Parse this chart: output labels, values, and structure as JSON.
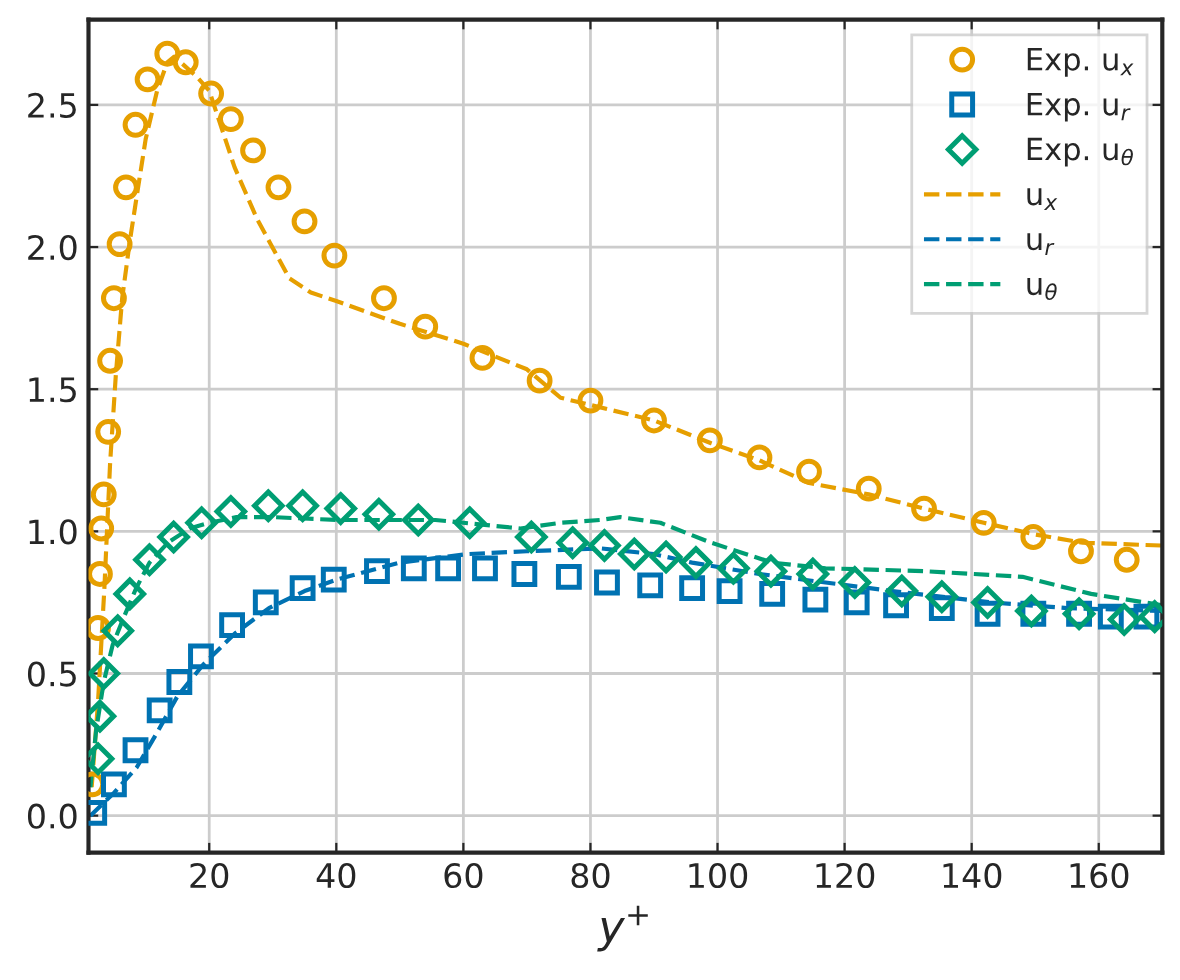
{
  "chart_data": {
    "type": "scatter",
    "xlabel": "y$^{+}$",
    "xlim": [
      1,
      170
    ],
    "ylim": [
      -0.13,
      2.8
    ],
    "xticks": [
      20,
      40,
      60,
      80,
      100,
      120,
      140,
      160
    ],
    "yticks": [
      {
        "value": 0,
        "label": "0.0"
      },
      0.5,
      {
        "value": 1,
        "label": "1.0"
      },
      1.5,
      {
        "value": 2,
        "label": "2.0"
      },
      2.5
    ],
    "grid": true,
    "legend": "top right",
    "series": [
      {
        "name": "Exp. u$_{x}$",
        "marker": "circle",
        "color": "#e69f00",
        "x": [
          1.6,
          2.5,
          2.8,
          3.0,
          3.4,
          4.1,
          4.4,
          5.0,
          5.9,
          6.9,
          8.4,
          10.3,
          13.4,
          16.3,
          20.3,
          23.4,
          26.9,
          30.9,
          35,
          39.7,
          47.5,
          54,
          63,
          72,
          80,
          90,
          98.8,
          106.6,
          114.4,
          123.8,
          132.5,
          141.9,
          149.7,
          157.2,
          164.4
        ],
        "values": [
          0.11,
          0.66,
          0.85,
          1.01,
          1.13,
          1.35,
          1.6,
          1.82,
          2.01,
          2.21,
          2.43,
          2.59,
          2.68,
          2.65,
          2.54,
          2.45,
          2.34,
          2.21,
          2.09,
          1.97,
          1.82,
          1.72,
          1.61,
          1.53,
          1.46,
          1.39,
          1.32,
          1.26,
          1.21,
          1.15,
          1.08,
          1.03,
          0.98,
          0.93,
          0.9
        ]
      },
      {
        "name": "Exp. u$_{r}$",
        "marker": "square",
        "color": "#0072b2",
        "x": [
          1.9,
          5,
          8.4,
          12.2,
          15.3,
          18.7,
          23.6,
          28.9,
          34.7,
          39.6,
          46.4,
          52.2,
          57.6,
          63.4,
          69.6,
          76.6,
          82.6,
          89.4,
          96,
          101.9,
          108.6,
          115.4,
          121.9,
          128.1,
          135.3,
          142.5,
          149.7,
          156.9,
          161.9,
          167.5
        ],
        "values": [
          0.01,
          0.11,
          0.23,
          0.37,
          0.47,
          0.56,
          0.67,
          0.75,
          0.8,
          0.83,
          0.86,
          0.87,
          0.87,
          0.87,
          0.85,
          0.84,
          0.82,
          0.81,
          0.8,
          0.79,
          0.78,
          0.76,
          0.75,
          0.74,
          0.73,
          0.71,
          0.71,
          0.71,
          0.7,
          0.7
        ]
      },
      {
        "name": "Exp. u$_{θ}$",
        "marker": "diamond",
        "color": "#009e73",
        "x": [
          2.5,
          2.8,
          3.4,
          5.6,
          7.5,
          10.6,
          14.4,
          18.8,
          23.4,
          29.3,
          34.7,
          40.7,
          46.7,
          52.9,
          61,
          70.7,
          77.2,
          82.2,
          86.9,
          91.9,
          96.6,
          102.5,
          108.4,
          115,
          121.6,
          129,
          135.3,
          142.5,
          149.4,
          156.9,
          164,
          168.8
        ],
        "values": [
          0.2,
          0.35,
          0.5,
          0.65,
          0.78,
          0.9,
          0.98,
          1.03,
          1.07,
          1.09,
          1.09,
          1.08,
          1.06,
          1.04,
          1.03,
          0.98,
          0.96,
          0.95,
          0.92,
          0.91,
          0.89,
          0.87,
          0.86,
          0.85,
          0.82,
          0.79,
          0.77,
          0.75,
          0.72,
          0.71,
          0.69,
          0.7
        ]
      },
      {
        "name": "u$_{x}$",
        "type": "line",
        "line_style": "dashed",
        "color": "#e69f00",
        "x": [
          1.5,
          2.5,
          3.5,
          4.4,
          5.3,
          6.3,
          7.5,
          8.6,
          10,
          11.8,
          13.4,
          14.5,
          16,
          18,
          20,
          24,
          27.5,
          32.6,
          36,
          40,
          50,
          60,
          70,
          75.3,
          90,
          99,
          106.6,
          114.4,
          123.8,
          132.5,
          141.9,
          149.7,
          157.5,
          170
        ],
        "values": [
          0.1,
          0.4,
          0.8,
          1.24,
          1.55,
          1.82,
          2.02,
          2.18,
          2.38,
          2.55,
          2.65,
          2.67,
          2.64,
          2.6,
          2.55,
          2.28,
          2.1,
          1.89,
          1.84,
          1.81,
          1.73,
          1.66,
          1.57,
          1.47,
          1.39,
          1.31,
          1.25,
          1.17,
          1.13,
          1.08,
          1.03,
          0.99,
          0.96,
          0.95
        ]
      },
      {
        "name": "u$_{r}$",
        "type": "line",
        "line_style": "dashed",
        "color": "#0072b2",
        "x": [
          1.3,
          5,
          8.6,
          12,
          15,
          19,
          24,
          29.4,
          35,
          40,
          50,
          60.6,
          70,
          81.6,
          90,
          96,
          106.6,
          117,
          127.5,
          143,
          155,
          170
        ],
        "values": [
          0.0,
          0.08,
          0.17,
          0.3,
          0.42,
          0.53,
          0.64,
          0.73,
          0.79,
          0.83,
          0.89,
          0.92,
          0.93,
          0.94,
          0.92,
          0.89,
          0.85,
          0.82,
          0.79,
          0.75,
          0.73,
          0.72
        ]
      },
      {
        "name": "u$_{θ}$",
        "type": "line",
        "line_style": "dashed",
        "color": "#009e73",
        "x": [
          1.3,
          2.2,
          3.4,
          4.8,
          6.6,
          8.5,
          10.6,
          13.5,
          16.9,
          20,
          24.3,
          30,
          40,
          55.6,
          69,
          75.3,
          81.6,
          84.7,
          91,
          99,
          108.6,
          117,
          132.5,
          148,
          158.8,
          170
        ],
        "values": [
          0.1,
          0.3,
          0.47,
          0.6,
          0.7,
          0.8,
          0.89,
          0.96,
          1.01,
          1.03,
          1.05,
          1.05,
          1.04,
          1.04,
          1.01,
          1.03,
          1.04,
          1.05,
          1.03,
          0.96,
          0.89,
          0.87,
          0.86,
          0.84,
          0.78,
          0.74
        ]
      }
    ]
  }
}
